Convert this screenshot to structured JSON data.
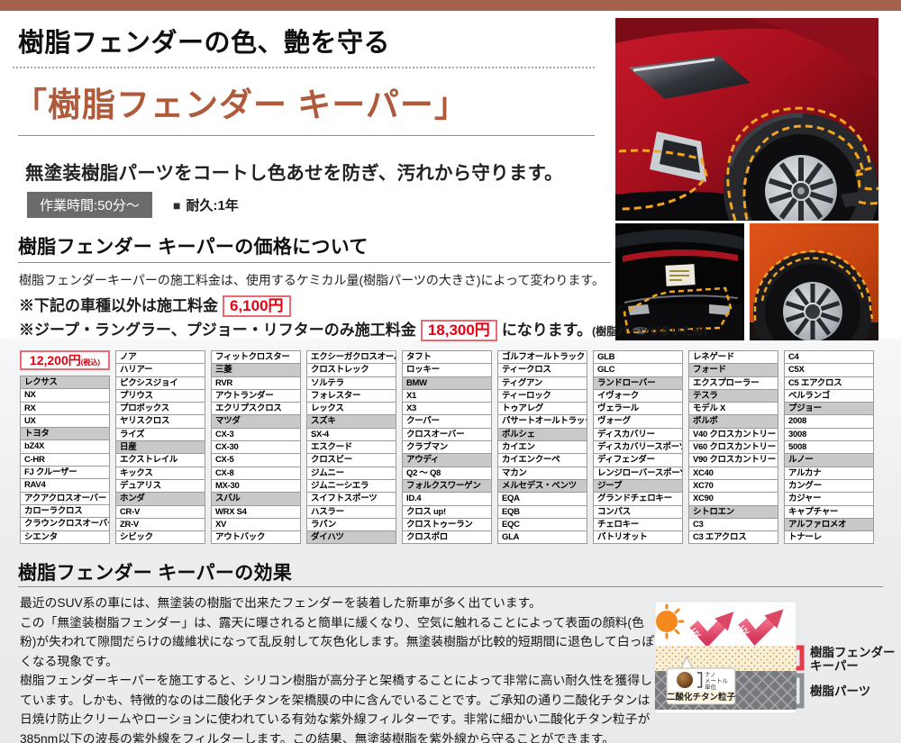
{
  "header": {
    "catch": "樹脂フェンダーの色、艶を守る",
    "title": "「樹脂フェンダー キーパー」",
    "lead": "無塗装樹脂パーツをコートし色あせを防ぎ、汚れから守ります。",
    "work_time": "作業時間:50分～",
    "durability_icon": "■",
    "durability": "耐久:1年"
  },
  "price_section": {
    "heading": "樹脂フェンダー キーパーの価格について",
    "description": "樹脂フェンダーキーパーの施工料金は、使用するケミカル量(樹脂パーツの大きさ)によって変わります。",
    "note1_prefix": "※下記の車種以外は施工料金",
    "note1_price": "6,100円",
    "note2_prefix": "※ジープ・ラングラー、プジョー・リフターのみ施工料金",
    "note2_price": "18,300円",
    "note2_suffix": "になります。",
    "note2_reason": "(樹脂パーツが多いため)"
  },
  "price_table": {
    "price": "12,200円",
    "tax_note": "(税込)",
    "columns": [
      [
        {
          "v": "レクサス",
          "h": 1
        },
        {
          "v": "NX"
        },
        {
          "v": "RX"
        },
        {
          "v": "UX"
        },
        {
          "v": "トヨタ",
          "h": 1
        },
        {
          "v": "bZ4X"
        },
        {
          "v": "C-HR"
        },
        {
          "v": "FJ クルーザー"
        },
        {
          "v": "RAV4"
        },
        {
          "v": "アクアクロスオーバー"
        },
        {
          "v": "カローラクロス"
        },
        {
          "v": "クラウンクロスオーバー"
        },
        {
          "v": "シエンタ"
        }
      ],
      [
        {
          "v": "ノア"
        },
        {
          "v": "ハリアー"
        },
        {
          "v": "ピクシスジョイ"
        },
        {
          "v": "プリウス"
        },
        {
          "v": "プロボックス"
        },
        {
          "v": "ヤリスクロス"
        },
        {
          "v": "ライズ"
        },
        {
          "v": "日産",
          "h": 1
        },
        {
          "v": "エクストレイル"
        },
        {
          "v": "キックス"
        },
        {
          "v": "デュアリス"
        },
        {
          "v": "ホンダ",
          "h": 1
        },
        {
          "v": "CR-V"
        },
        {
          "v": "ZR-V"
        },
        {
          "v": "シビック"
        }
      ],
      [
        {
          "v": "フィットクロスター"
        },
        {
          "v": "三菱",
          "h": 1
        },
        {
          "v": "RVR"
        },
        {
          "v": "アウトランダー"
        },
        {
          "v": "エクリプスクロス"
        },
        {
          "v": "マツダ",
          "h": 1
        },
        {
          "v": "CX-3"
        },
        {
          "v": "CX-30"
        },
        {
          "v": "CX-5"
        },
        {
          "v": "CX-8"
        },
        {
          "v": "MX-30"
        },
        {
          "v": "スバル",
          "h": 1
        },
        {
          "v": "WRX S4"
        },
        {
          "v": "XV"
        },
        {
          "v": "アウトバック"
        }
      ],
      [
        {
          "v": "エクシーガクロスオーバー"
        },
        {
          "v": "クロストレック"
        },
        {
          "v": "ソルテラ"
        },
        {
          "v": "フォレスター"
        },
        {
          "v": "レックス"
        },
        {
          "v": "スズキ",
          "h": 1
        },
        {
          "v": "SX-4"
        },
        {
          "v": "エスクード"
        },
        {
          "v": "クロスビー"
        },
        {
          "v": "ジムニー"
        },
        {
          "v": "ジムニーシエラ"
        },
        {
          "v": "スイフトスポーツ"
        },
        {
          "v": "ハスラー"
        },
        {
          "v": "ラパン"
        },
        {
          "v": "ダイハツ",
          "h": 1
        }
      ],
      [
        {
          "v": "タフト"
        },
        {
          "v": "ロッキー"
        },
        {
          "v": "BMW",
          "h": 1
        },
        {
          "v": "X1"
        },
        {
          "v": "X3"
        },
        {
          "v": "クーパー"
        },
        {
          "v": "クロスオーバー"
        },
        {
          "v": "クラブマン"
        },
        {
          "v": "アウディ",
          "h": 1
        },
        {
          "v": "Q2 ～ Q8"
        },
        {
          "v": "フォルクスワーゲン",
          "h": 1
        },
        {
          "v": "ID.4"
        },
        {
          "v": "クロス up!"
        },
        {
          "v": "クロストゥーラン"
        },
        {
          "v": "クロスポロ"
        }
      ],
      [
        {
          "v": "ゴルフオールトラック"
        },
        {
          "v": "ティークロス"
        },
        {
          "v": "ティグアン"
        },
        {
          "v": "ティーロック"
        },
        {
          "v": "トゥアレグ"
        },
        {
          "v": "パサートオールトラック"
        },
        {
          "v": "ポルシェ",
          "h": 1
        },
        {
          "v": "カイエン"
        },
        {
          "v": "カイエンクーペ"
        },
        {
          "v": "マカン"
        },
        {
          "v": "メルセデス・ベンツ",
          "h": 1
        },
        {
          "v": "EQA"
        },
        {
          "v": "EQB"
        },
        {
          "v": "EQC"
        },
        {
          "v": "GLA"
        }
      ],
      [
        {
          "v": "GLB"
        },
        {
          "v": "GLC"
        },
        {
          "v": "ランドローバー",
          "h": 1
        },
        {
          "v": "イヴォーク"
        },
        {
          "v": "ヴェラール"
        },
        {
          "v": "ヴォーグ"
        },
        {
          "v": "ディスカバリー"
        },
        {
          "v": "ディスカバリースポーツ"
        },
        {
          "v": "ディフェンダー"
        },
        {
          "v": "レンジローバースポーツ"
        },
        {
          "v": "ジープ",
          "h": 1
        },
        {
          "v": "グランドチェロキー"
        },
        {
          "v": "コンパス"
        },
        {
          "v": "チェロキー"
        },
        {
          "v": "パトリオット"
        }
      ],
      [
        {
          "v": "レネゲード"
        },
        {
          "v": "フォード",
          "h": 1
        },
        {
          "v": "エクスプローラー"
        },
        {
          "v": "テスラ",
          "h": 1
        },
        {
          "v": "モデル X"
        },
        {
          "v": "ボルボ",
          "h": 1
        },
        {
          "v": "V40 クロスカントリー"
        },
        {
          "v": "V60 クロスカントリー"
        },
        {
          "v": "V90 クロスカントリー"
        },
        {
          "v": "XC40"
        },
        {
          "v": "XC70"
        },
        {
          "v": "XC90"
        },
        {
          "v": "シトロエン",
          "h": 1
        },
        {
          "v": "C3"
        },
        {
          "v": "C3 エアクロス"
        }
      ],
      [
        {
          "v": "C4"
        },
        {
          "v": "C5X"
        },
        {
          "v": "C5 エアクロス"
        },
        {
          "v": "ベルランゴ"
        },
        {
          "v": "プジョー",
          "h": 1
        },
        {
          "v": "2008"
        },
        {
          "v": "3008"
        },
        {
          "v": "5008"
        },
        {
          "v": "ルノー",
          "h": 1
        },
        {
          "v": "アルカナ"
        },
        {
          "v": "カングー"
        },
        {
          "v": "カジャー"
        },
        {
          "v": "キャプチャー"
        },
        {
          "v": "アルファロメオ",
          "h": 1
        },
        {
          "v": "トナーレ"
        }
      ]
    ]
  },
  "effect_section": {
    "heading": "樹脂フェンダー キーパーの効果",
    "paragraphs": [
      "最近のSUV系の車には、無塗装の樹脂で出来たフェンダーを装着した新車が多く出ています。",
      "この「無塗装樹脂フェンダー」は、露天に曝されると簡単に緩くなり、空気に触れることによって表面の顔料(色粉)が失われて隙間だらけの繊維状になって乱反射して灰色化します。無塗装樹脂が比較的短期間に退色して白っぽくなる現象です。",
      "樹脂フェンダーキーパーを施工すると、シリコン樹脂が高分子と架橋することによって非常に高い耐久性を獲得しています。しかも、特徴的なのは二酸化チタンを架橋膜の中に含んでいることです。ご承知の通り二酸化チタンは日焼け防止クリームやローションに使われている有効な紫外線フィルターです。非常に細かい二酸化チタン粒子が385nm以下の波長の紫外線をフィルターします。この結果、無塗装樹脂を紫外線から守ることができます。"
    ]
  },
  "diagram": {
    "uv": "UV",
    "nano": [
      "ナノ",
      "メートル",
      "単位"
    ],
    "particle_label": "二酸化チタン粒子",
    "keeper_label_line1": "樹脂フェンダー",
    "keeper_label_line2": "キーパー",
    "parts_label": "樹脂パーツ"
  },
  "colors": {
    "accent_bar": "#a5624a",
    "title_brown": "#b05a3c",
    "price_red": "#e60012",
    "uv_arrow_pink": "#dd4766",
    "outline_orange": "#f2a51f",
    "brand_header_gray": "#c9c9c9"
  }
}
